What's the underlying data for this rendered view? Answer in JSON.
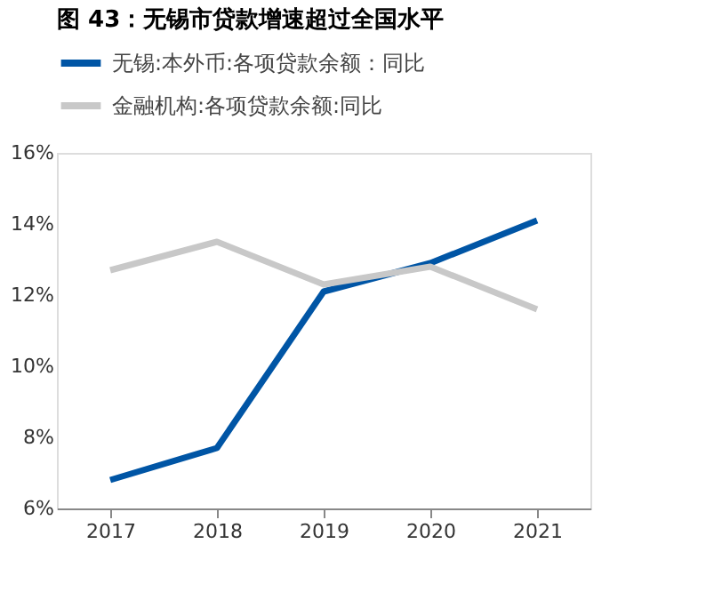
{
  "chart_data": {
    "type": "line",
    "title": "图 43：无锡市贷款增速超过全国水平",
    "categories": [
      "2017",
      "2018",
      "2019",
      "2020",
      "2021"
    ],
    "series": [
      {
        "name": "无锡:本外币:各项贷款余额：同比",
        "color": "#0055a5",
        "values": [
          6.8,
          7.7,
          12.1,
          12.9,
          14.1
        ]
      },
      {
        "name": "金融机构:各项贷款余额:同比",
        "color": "#c8c8c8",
        "values": [
          12.7,
          13.5,
          12.3,
          12.8,
          11.6
        ]
      }
    ],
    "ylim": [
      6,
      16
    ],
    "yticks": [
      {
        "value": 6,
        "label": "6%"
      },
      {
        "value": 8,
        "label": "8%"
      },
      {
        "value": 10,
        "label": "10%"
      },
      {
        "value": 12,
        "label": "12%"
      },
      {
        "value": 14,
        "label": "14%"
      },
      {
        "value": 16,
        "label": "16%"
      }
    ],
    "grid": false,
    "legend": "top",
    "marker": "none",
    "line_style": "solid"
  }
}
